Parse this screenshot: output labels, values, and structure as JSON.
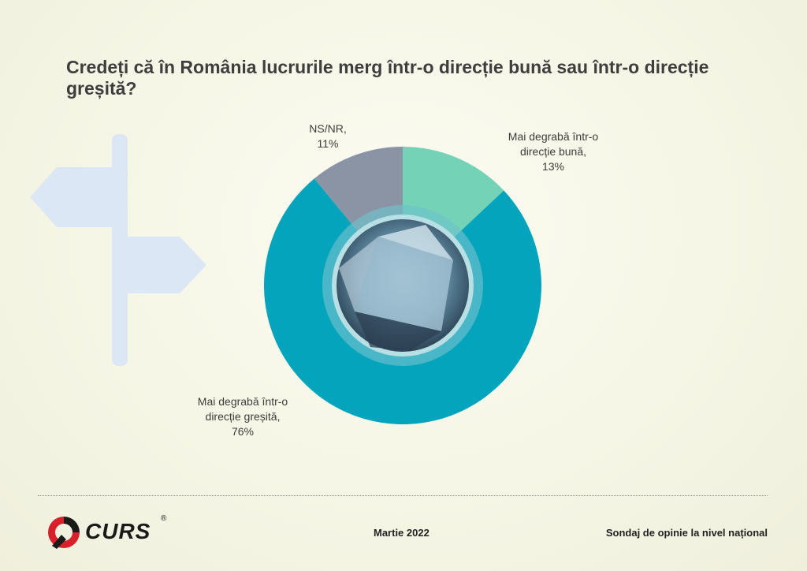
{
  "title": "Credeți că în România lucrurile merg într-o direcție bună sau într-o direcție greșită?",
  "chart_data": {
    "type": "pie",
    "style": "donut",
    "slices": [
      {
        "label": "Mai degrabă într-o direcție bună",
        "value": 13,
        "label_text": "Mai degrabă într-o\ndirecție bună,\n13%",
        "color": "#74d3b7"
      },
      {
        "label": "Mai degrabă într-o direcție greșită",
        "value": 76,
        "label_text": "Mai degrabă într-o\ndirecție greșită,\n76%",
        "color": "#03a4bc"
      },
      {
        "label": "NS/NR",
        "value": 11,
        "label_text": "NS/NR,\n11%",
        "color": "#8a94a4"
      }
    ]
  },
  "footer": {
    "logo_text": "CURS",
    "logo_mark": "®",
    "date": "Martie 2022",
    "note": "Sondaj de opinie la nivel național"
  },
  "colors": {
    "background": "#f8f8ea",
    "signpost": "#dbe7f4",
    "title": "#3e3e3e",
    "logo_red": "#d8202a"
  }
}
